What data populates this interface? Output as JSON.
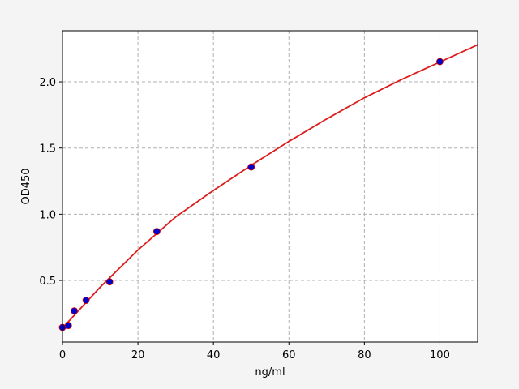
{
  "chart_data": {
    "type": "scatter",
    "xlabel": "ng/ml",
    "ylabel": "OD450",
    "xlim": [
      0,
      110
    ],
    "ylim": [
      0.035,
      2.386
    ],
    "xticks": [
      0,
      20,
      40,
      60,
      80,
      100
    ],
    "yticks": [
      0.5,
      {
        "value": 1,
        "label": "1.0"
      },
      1.5,
      {
        "value": 2,
        "label": "2.0"
      }
    ],
    "grid": true,
    "series": [
      {
        "type": "scatter",
        "color": "#0000cc",
        "edge": "#cc0000",
        "x": [
          0,
          1.56,
          3.125,
          6.25,
          12.5,
          25,
          50,
          100
        ],
        "values": [
          0.145,
          0.16,
          0.27,
          0.35,
          0.49,
          0.87,
          1.357,
          2.153
        ]
      },
      {
        "type": "line",
        "color": "#dd1c1c",
        "x": [
          0,
          10,
          20,
          30,
          40,
          50,
          60,
          70,
          80,
          90,
          100,
          110
        ],
        "values": [
          0.14,
          0.45,
          0.73,
          0.98,
          1.18,
          1.37,
          1.55,
          1.72,
          1.88,
          2.02,
          2.15,
          2.28
        ]
      }
    ]
  }
}
